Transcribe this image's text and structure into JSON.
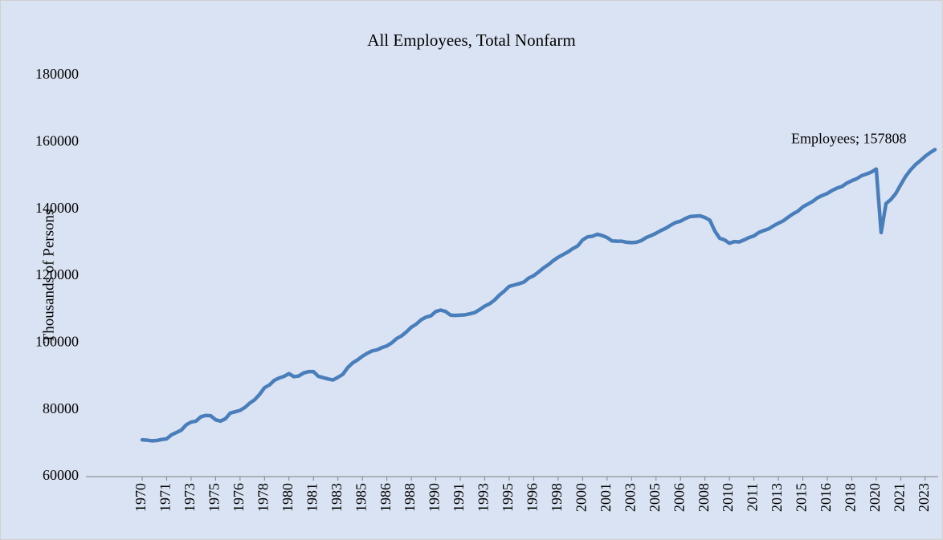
{
  "chart_data": {
    "type": "line",
    "title": "All Employees, Total Nonfarm",
    "y_label": "Thousands of Persons",
    "categories": [
      "1970",
      null,
      null,
      null,
      null,
      "1971",
      null,
      null,
      null,
      null,
      "1973",
      null,
      null,
      null,
      null,
      "1975",
      null,
      null,
      null,
      null,
      "1976",
      null,
      null,
      null,
      null,
      "1978",
      null,
      null,
      null,
      null,
      "1980",
      null,
      null,
      null,
      null,
      "1981",
      null,
      null,
      null,
      null,
      "1983",
      null,
      null,
      null,
      null,
      "1985",
      null,
      null,
      null,
      null,
      "1986",
      null,
      null,
      null,
      null,
      "1988",
      null,
      null,
      null,
      null,
      "1990",
      null,
      null,
      null,
      null,
      "1991",
      null,
      null,
      null,
      null,
      "1993",
      null,
      null,
      null,
      null,
      "1995",
      null,
      null,
      null,
      null,
      "1996",
      null,
      null,
      null,
      null,
      "1998",
      null,
      null,
      null,
      null,
      "2000",
      null,
      null,
      null,
      null,
      "2001",
      null,
      null,
      null,
      null,
      "2003",
      null,
      null,
      null,
      null,
      "2005",
      null,
      null,
      null,
      null,
      "2006",
      null,
      null,
      null,
      null,
      "2008",
      null,
      null,
      null,
      null,
      "2010",
      null,
      null,
      null,
      null,
      "2011",
      null,
      null,
      null,
      null,
      "2013",
      null,
      null,
      null,
      null,
      "2015",
      null,
      null,
      null,
      null,
      "2016",
      null,
      null,
      null,
      null,
      "2018",
      null,
      null,
      null,
      null,
      "2020",
      null,
      null,
      null,
      null,
      "2021",
      null,
      null,
      null,
      null,
      "2023",
      null,
      null
    ],
    "series": [
      {
        "name": "Employees",
        "color": "#4a7ebb",
        "values": [
          71000,
          70900,
          70700,
          70800,
          71100,
          71300,
          72500,
          73200,
          73900,
          75500,
          76300,
          76600,
          77900,
          78300,
          78200,
          77000,
          76600,
          77300,
          79000,
          79400,
          79800,
          80700,
          82000,
          83000,
          84600,
          86600,
          87400,
          88800,
          89500,
          90000,
          90800,
          89900,
          90100,
          91000,
          91400,
          91400,
          90000,
          89600,
          89200,
          88900,
          89700,
          90600,
          92600,
          94000,
          94900,
          96000,
          96900,
          97600,
          97900,
          98600,
          99100,
          100000,
          101300,
          102100,
          103300,
          104700,
          105600,
          106900,
          107700,
          108100,
          109400,
          109800,
          109400,
          108300,
          108200,
          108300,
          108400,
          108700,
          109100,
          110000,
          111000,
          111700,
          112800,
          114300,
          115500,
          116900,
          117300,
          117700,
          118200,
          119400,
          120100,
          121200,
          122400,
          123400,
          124600,
          125600,
          126400,
          127200,
          128200,
          129000,
          130800,
          131700,
          131900,
          132500,
          132100,
          131500,
          130500,
          130400,
          130400,
          130100,
          130000,
          130100,
          130600,
          131500,
          132100,
          132800,
          133600,
          134300,
          135200,
          136000,
          136400,
          137200,
          137800,
          137900,
          138000,
          137500,
          136700,
          133500,
          131300,
          130800,
          129800,
          130300,
          130200,
          130800,
          131500,
          132000,
          133000,
          133600,
          134100,
          135000,
          135800,
          136500,
          137600,
          138600,
          139400,
          140700,
          141500,
          142300,
          143400,
          144100,
          144700,
          145600,
          146300,
          146800,
          147800,
          148500,
          149100,
          150000,
          150500,
          151100,
          152000,
          133000,
          141700,
          142900,
          144700,
          147300,
          149800,
          151700,
          153300,
          154500,
          155800,
          156900,
          157808
        ],
        "value_labels": [
          null,
          null,
          null,
          null,
          null,
          null,
          null,
          null,
          null,
          null,
          null,
          null,
          null,
          null,
          null,
          null,
          null,
          null,
          null,
          null,
          null,
          null,
          null,
          null,
          null,
          null,
          null,
          null,
          null,
          null,
          null,
          null,
          null,
          null,
          null,
          null,
          null,
          null,
          null,
          null,
          null,
          null,
          null,
          null,
          null,
          null,
          null,
          null,
          null,
          null,
          null,
          null,
          null,
          null,
          null,
          null,
          null,
          null,
          null,
          null,
          null,
          null,
          null,
          null,
          null,
          null,
          null,
          null,
          null,
          null,
          null,
          null,
          null,
          null,
          null,
          null,
          null,
          null,
          null,
          null,
          null,
          null,
          null,
          null,
          null,
          null,
          null,
          null,
          null,
          null,
          null,
          null,
          null,
          null,
          null,
          null,
          null,
          null,
          null,
          null,
          null,
          null,
          null,
          null,
          null,
          null,
          null,
          null,
          null,
          null,
          null,
          null,
          null,
          null,
          null,
          null,
          null,
          null,
          null,
          null,
          null,
          null,
          null,
          null,
          null,
          null,
          null,
          null,
          null,
          null,
          null,
          null,
          null,
          null,
          null,
          null,
          null,
          null,
          null,
          null,
          null,
          null,
          null,
          null,
          null,
          null,
          null,
          null,
          null,
          null,
          null,
          null,
          null,
          null,
          null,
          null,
          null,
          null,
          null,
          null,
          null,
          null,
          "Employees; 157808"
        ]
      }
    ],
    "ylim": [
      60000,
      180000
    ],
    "yticks": [
      60000,
      80000,
      100000,
      120000,
      140000,
      160000,
      180000
    ],
    "grid": false
  }
}
